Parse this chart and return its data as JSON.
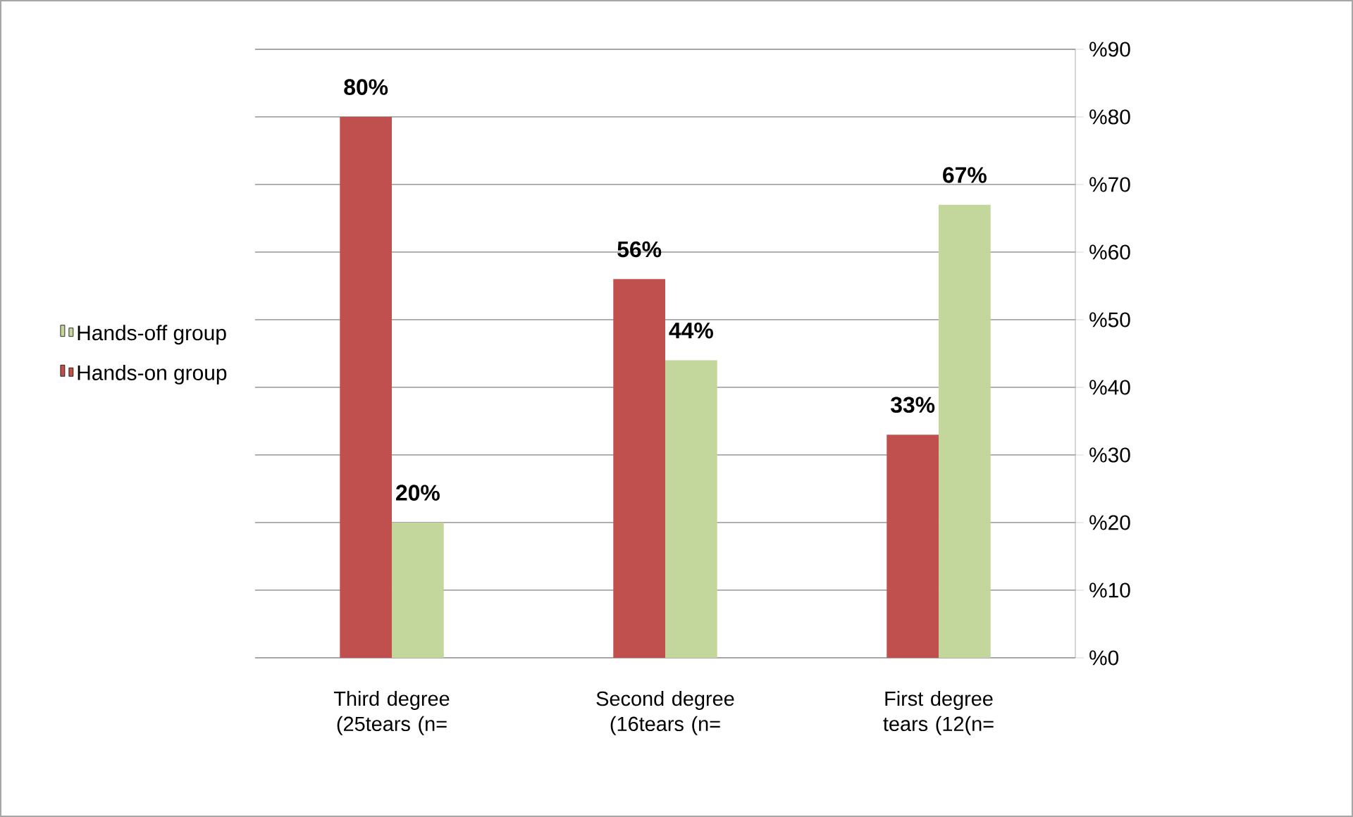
{
  "chart_data": {
    "type": "bar",
    "categories": [
      "Third degree (25tears (n=",
      "Second degree (16tears (n=",
      "First degree tears (12(n="
    ],
    "series": [
      {
        "name": "Hands-on group",
        "color": "#c0504d",
        "values": [
          80,
          56,
          33
        ],
        "value_labels": [
          "80%",
          "56%",
          "33%"
        ]
      },
      {
        "name": "Hands-off group",
        "color": "#c3d69b",
        "values": [
          20,
          44,
          67
        ],
        "value_labels": [
          "20%",
          "44%",
          "67%"
        ]
      }
    ],
    "ylim": [
      0,
      90
    ],
    "yticks": [
      {
        "value": 0,
        "label": "%0"
      },
      {
        "value": 10,
        "label": "%10"
      },
      {
        "value": 20,
        "label": "%20"
      },
      {
        "value": 30,
        "label": "%30"
      },
      {
        "value": 40,
        "label": "%40"
      },
      {
        "value": 50,
        "label": "%50"
      },
      {
        "value": 60,
        "label": "%60"
      },
      {
        "value": 70,
        "label": "%70"
      },
      {
        "value": 80,
        "label": "%80"
      },
      {
        "value": 90,
        "label": "%90"
      }
    ],
    "grid": "y",
    "legend": "left"
  }
}
